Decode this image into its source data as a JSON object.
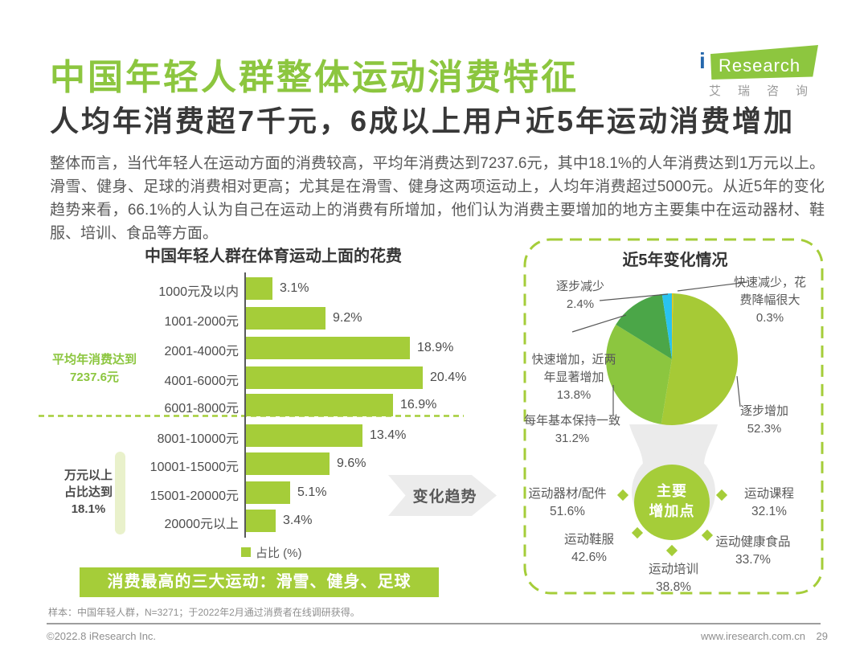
{
  "page": {
    "title": "中国年轻人群整体运动消费特征",
    "subtitle": "人均年消费超7千元，6成以上用户近5年运动消费增加",
    "body": "整体而言，当代年轻人在运动方面的消费较高，平均年消费达到7237.6元，其中18.1%的人年消费达到1万元以上。滑雪、健身、足球的消费相对更高；尤其是在滑雪、健身这两项运动上，人均年消费超过5000元。从近5年的变化趋势来看，66.1%的人认为自己在运动上的消费有所增加，他们认为消费主要增加的地方主要集中在运动器材、鞋服、培训、食品等方面。"
  },
  "logo": {
    "i": "i",
    "brand": "Research",
    "cn": "艾瑞咨询"
  },
  "colors": {
    "brand_green": "#a5cd39",
    "title_green": "#8cc63f",
    "body_text": "#595959",
    "arrow_gray": "#ececec",
    "pedestal_gray": "#ebebeb",
    "leader_line": "#595959"
  },
  "chart_data": [
    {
      "type": "bar",
      "orientation": "horizontal",
      "title": "中国年轻人群在体育运动上面的花费",
      "categories": [
        "1000元及以内",
        "1001-2000元",
        "2001-4000元",
        "4001-6000元",
        "6001-8000元",
        "8001-10000元",
        "10001-15000元",
        "15001-20000元",
        "20000元以上"
      ],
      "values": [
        3.1,
        9.2,
        18.9,
        20.4,
        16.9,
        13.4,
        9.6,
        5.1,
        3.4
      ],
      "unit": "%",
      "xlim": [
        0,
        22
      ],
      "bar_color": "#a5cd39",
      "legend": "占比 (%)",
      "annotations": {
        "average": [
          "平均年消费达到",
          "7237.6元"
        ],
        "over_10k": [
          "万元以上",
          "占比达到",
          "18.1%"
        ]
      },
      "highlight_banner": "消费最高的三大运动：滑雪、健身、足球"
    },
    {
      "type": "pie",
      "title": "近5年变化情况",
      "labels": [
        "快速减少，花费降幅很大",
        "逐步增加",
        "每年基本保持一致",
        "快速增加，近两年显著增加",
        "逐步减少"
      ],
      "values": [
        0.3,
        52.3,
        31.2,
        13.8,
        2.4
      ],
      "colors": [
        "#eec416",
        "#a6ca36",
        "#8cc63f",
        "#4ba648",
        "#29c3ef"
      ],
      "callouts": [
        {
          "lines": [
            "快速减少，花",
            "费降幅很大",
            "0.3%"
          ]
        },
        {
          "lines": [
            "逐步增加",
            "52.3%"
          ]
        },
        {
          "lines": [
            "每年基本保持一致",
            "31.2%"
          ]
        },
        {
          "lines": [
            "快速增加，近两",
            "年显著增加",
            "13.8%"
          ]
        },
        {
          "lines": [
            "逐步减少",
            "2.4%"
          ]
        }
      ]
    },
    {
      "type": "table",
      "title": "主要增加点",
      "labels": [
        "运动器材/配件",
        "运动课程",
        "运动鞋服",
        "运动健康食品",
        "运动培训"
      ],
      "values": [
        51.6,
        32.1,
        42.6,
        33.7,
        38.8
      ]
    }
  ],
  "trend_arrow": {
    "label": "变化趋势"
  },
  "right_panel": {
    "center": [
      "主要",
      "增加点"
    ],
    "items": [
      {
        "label": "运动器材/配件",
        "value": "51.6%"
      },
      {
        "label": "运动课程",
        "value": "32.1%"
      },
      {
        "label": "运动鞋服",
        "value": "42.6%"
      },
      {
        "label": "运动健康食品",
        "value": "33.7%"
      },
      {
        "label": "运动培训",
        "value": "38.8%"
      }
    ]
  },
  "footer": {
    "sample_note": "样本：中国年轻人群，N=3271；于2022年2月通过消费者在线调研获得。",
    "copyright": "©2022.8 iResearch Inc.",
    "website": "www.iresearch.com.cn",
    "page_number": "29"
  }
}
